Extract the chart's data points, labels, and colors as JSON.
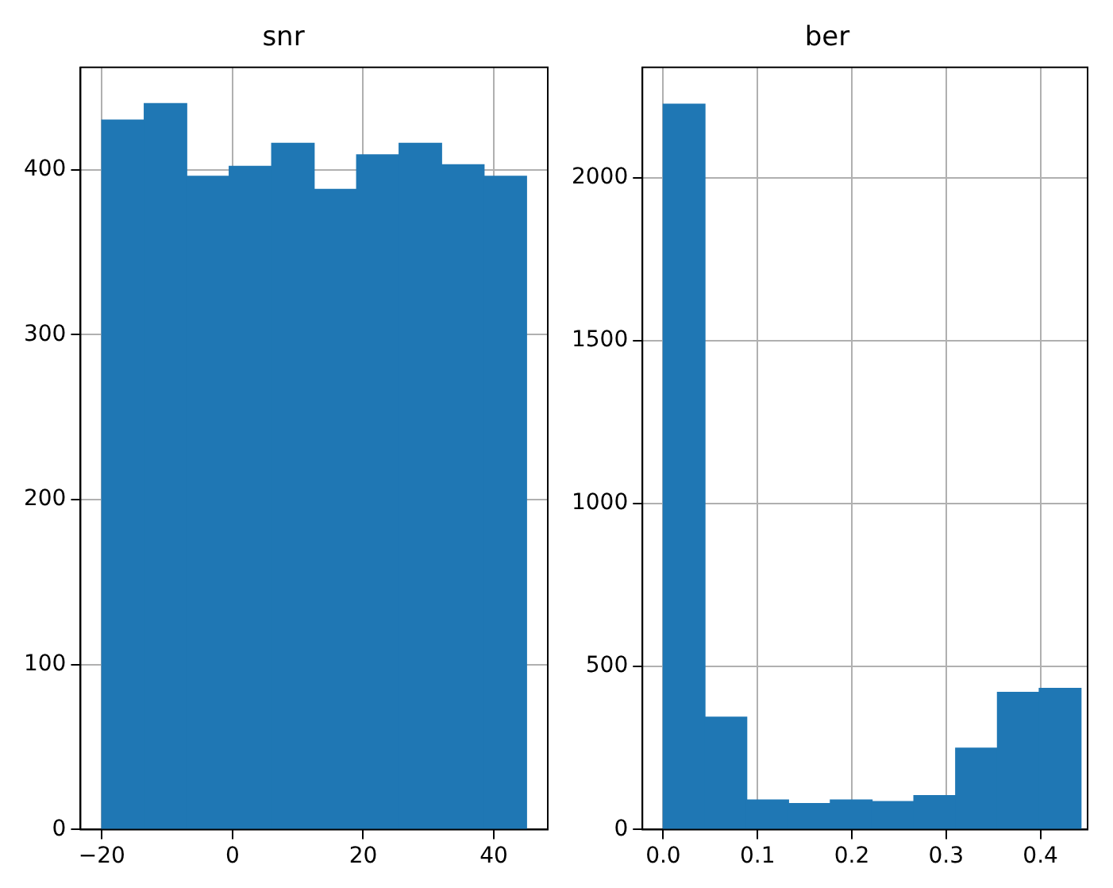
{
  "chart_data": [
    {
      "type": "histogram",
      "title": "snr",
      "bins": [
        -20,
        -13.5,
        -7,
        -0.5,
        6,
        12.5,
        19,
        25.5,
        32,
        38.5,
        45
      ],
      "values": [
        430,
        440,
        396,
        402,
        416,
        388,
        409,
        416,
        403,
        396
      ],
      "color": "#1f77b4",
      "xlim": [
        -23.25,
        48.25
      ],
      "ylim": [
        0,
        462
      ],
      "xticks": [
        -20,
        0,
        20,
        40
      ],
      "yticks": [
        0,
        100,
        200,
        300,
        400
      ],
      "grid": true
    },
    {
      "type": "histogram",
      "title": "ber",
      "bins": [
        0,
        0.0443,
        0.0886,
        0.1329,
        0.1772,
        0.2215,
        0.2658,
        0.3101,
        0.3544,
        0.3987,
        0.443
      ],
      "values": [
        2225,
        345,
        91,
        80,
        91,
        86,
        104,
        250,
        421,
        433
      ],
      "color": "#1f77b4",
      "xlim": [
        -0.022,
        0.45
      ],
      "ylim": [
        0,
        2338
      ],
      "xticks": [
        {
          "value": 0,
          "label": "0.0"
        },
        {
          "value": 0.1,
          "label": "0.1"
        },
        {
          "value": 0.2,
          "label": "0.2"
        },
        {
          "value": 0.3,
          "label": "0.3"
        },
        {
          "value": 0.4,
          "label": "0.4"
        }
      ],
      "yticks": [
        0,
        500,
        1000,
        1500,
        2000
      ],
      "grid": true
    }
  ]
}
